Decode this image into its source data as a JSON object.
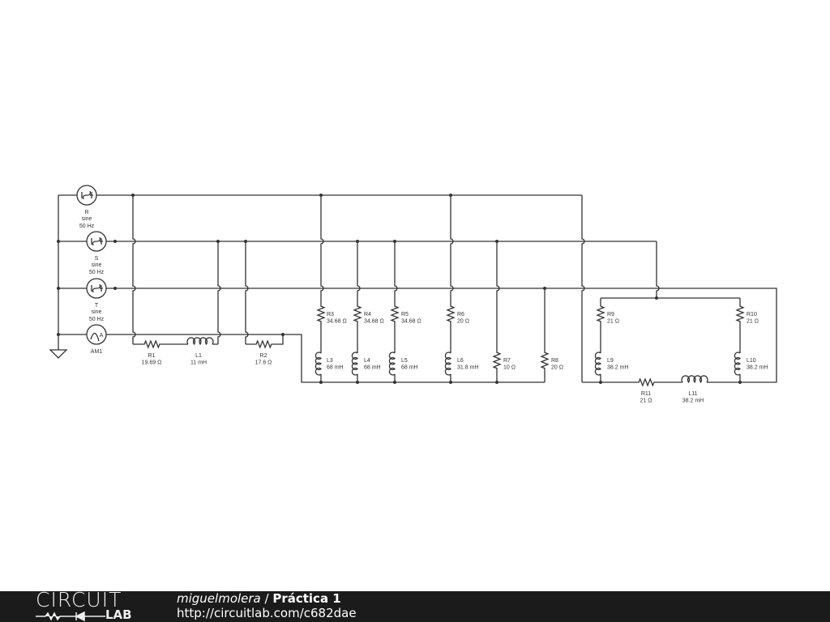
{
  "sources": [
    {
      "name": "R",
      "waveform": "sine",
      "freq": "50 Hz",
      "type": "ac-voltage"
    },
    {
      "name": "S",
      "waveform": "sine",
      "freq": "50 Hz",
      "type": "ac-voltage"
    },
    {
      "name": "T",
      "waveform": "sine",
      "freq": "50 Hz",
      "type": "ac-voltage"
    },
    {
      "name": "AM1",
      "symbol": "A",
      "type": "ammeter"
    }
  ],
  "components": [
    {
      "name": "R1",
      "value": "19.69 Ω",
      "type": "resistor"
    },
    {
      "name": "L1",
      "value": "11 mH",
      "type": "inductor"
    },
    {
      "name": "R2",
      "value": "17.6 Ω",
      "type": "resistor"
    },
    {
      "name": "R3",
      "value": "34.68 Ω",
      "type": "resistor"
    },
    {
      "name": "L3",
      "value": "68 mH",
      "type": "inductor"
    },
    {
      "name": "R4",
      "value": "34.68 Ω",
      "type": "resistor"
    },
    {
      "name": "L4",
      "value": "68 mH",
      "type": "inductor"
    },
    {
      "name": "R5",
      "value": "34.68 Ω",
      "type": "resistor"
    },
    {
      "name": "L5",
      "value": "68 mH",
      "type": "inductor"
    },
    {
      "name": "R6",
      "value": "20 Ω",
      "type": "resistor"
    },
    {
      "name": "L6",
      "value": "31.8 mH",
      "type": "inductor"
    },
    {
      "name": "R7",
      "value": "10 Ω",
      "type": "resistor"
    },
    {
      "name": "R8",
      "value": "20 Ω",
      "type": "resistor"
    },
    {
      "name": "R9",
      "value": "21 Ω",
      "type": "resistor"
    },
    {
      "name": "L9",
      "value": "38.2 mH",
      "type": "inductor"
    },
    {
      "name": "R10",
      "value": "21 Ω",
      "type": "resistor"
    },
    {
      "name": "L10",
      "value": "38.2 mH",
      "type": "inductor"
    },
    {
      "name": "R11",
      "value": "21 Ω",
      "type": "resistor"
    },
    {
      "name": "L11",
      "value": "38.2 mH",
      "type": "inductor"
    }
  ],
  "footer": {
    "logo_top": "CIRCUIT",
    "logo_bottom": "LAB",
    "user": "miguelmolera",
    "separator": " / ",
    "title": "Práctica 1",
    "url": "http://circuitlab.com/c682dae"
  },
  "colors": {
    "wire": "#333333",
    "footer_bg": "#1b1b1b",
    "footer_text": "#ffffff"
  }
}
